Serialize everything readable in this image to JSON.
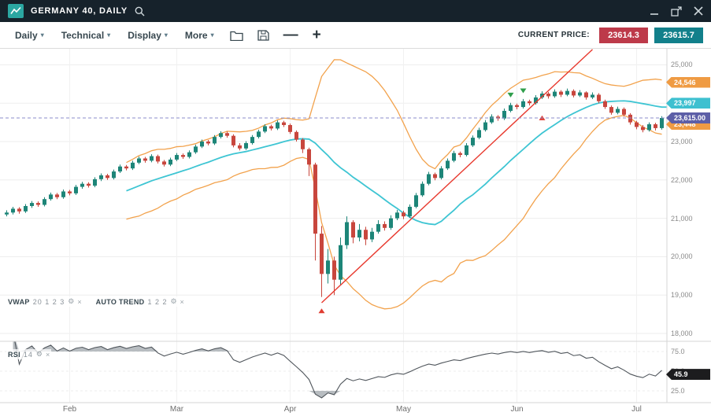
{
  "title_bar": {
    "title": "GERMANY 40, DAILY"
  },
  "toolbar": {
    "menus": [
      {
        "label": "Daily"
      },
      {
        "label": "Technical"
      },
      {
        "label": "Display"
      },
      {
        "label": "More"
      }
    ],
    "zoom_out": "—",
    "zoom_in": "+",
    "current_price_label": "CURRENT PRICE:",
    "sell_price": "23614.3",
    "buy_price": "23615.7"
  },
  "indicators": {
    "vwap_label": "VWAP",
    "vwap_params": "20 1 2 3",
    "autotrend_label": "AUTO TREND",
    "autotrend_params": "1 2 2",
    "rsi_label": "RSI",
    "rsi_params": "14"
  },
  "axes": {
    "price_ticks": [
      {
        "label": "25,000",
        "value": 25000
      },
      {
        "label": "24,000",
        "value": 24000
      },
      {
        "label": "23,000",
        "value": 23000
      },
      {
        "label": "22,000",
        "value": 22000
      },
      {
        "label": "21,000",
        "value": 21000
      },
      {
        "label": "20,000",
        "value": 20000
      },
      {
        "label": "19,000",
        "value": 19000
      },
      {
        "label": "18,000",
        "value": 18000
      }
    ],
    "rsi_ticks": [
      {
        "label": "75.0",
        "value": 75
      },
      {
        "label": "50.0",
        "value": 50
      },
      {
        "label": "25.0",
        "value": 25
      }
    ]
  },
  "price_badges": [
    {
      "text": "24,546",
      "value": 24546,
      "color": "#ef9b43"
    },
    {
      "text": "23,997",
      "value": 23997,
      "color": "#3ec0d0"
    },
    {
      "text": "23,448",
      "value": 23448,
      "color": "#ef9b43"
    },
    {
      "text": "23,615.00",
      "value": 23615,
      "color": "#5d5fa7"
    }
  ],
  "rsi_badge": {
    "text": "45.9",
    "value": 45.9,
    "color": "#1c1c1e"
  },
  "chart_data": {
    "type": "candlestick",
    "symbol": "GERMANY 40",
    "timeframe": "DAILY",
    "current_price": 23615,
    "ylim": [
      17800,
      25500
    ],
    "colors": {
      "up": "#1d8578",
      "down": "#c8463d"
    },
    "months": [
      {
        "label": "Feb",
        "index": 10
      },
      {
        "label": "Mar",
        "index": 27
      },
      {
        "label": "Apr",
        "index": 45
      },
      {
        "label": "May",
        "index": 63
      },
      {
        "label": "Jun",
        "index": 81
      },
      {
        "label": "Jul",
        "index": 100
      }
    ],
    "overlays": {
      "vwap": {
        "period": 20,
        "color": "#3ec5d3"
      },
      "bands": {
        "multiplier": 2,
        "color": "#f2a24c"
      }
    },
    "trend_line": {
      "from": {
        "index": 50,
        "price": 18800
      },
      "to": {
        "index": 93,
        "price": 25400
      },
      "color": "#e8392e"
    },
    "markers": [
      {
        "shape": "triangle-up",
        "color": "#e03c31",
        "index": 50,
        "price": 18650
      },
      {
        "shape": "triangle-down",
        "color": "#2f9e4b",
        "index": 80,
        "price": 24150
      },
      {
        "shape": "triangle-down",
        "color": "#2f9e4b",
        "index": 82,
        "price": 24260
      },
      {
        "shape": "triangle-up",
        "color": "#e03c31",
        "index": 85,
        "price": 23680
      }
    ],
    "rsi": {
      "period": 14,
      "upper": 75,
      "lower": 25,
      "current": 45.9,
      "color": "#50565c"
    },
    "candles": [
      [
        21100,
        21210,
        21050,
        21150
      ],
      [
        21150,
        21300,
        21100,
        21250
      ],
      [
        21250,
        21290,
        21120,
        21180
      ],
      [
        21180,
        21370,
        21140,
        21320
      ],
      [
        21320,
        21450,
        21270,
        21400
      ],
      [
        21400,
        21440,
        21300,
        21350
      ],
      [
        21350,
        21550,
        21310,
        21500
      ],
      [
        21500,
        21670,
        21460,
        21620
      ],
      [
        21620,
        21660,
        21500,
        21550
      ],
      [
        21550,
        21750,
        21510,
        21700
      ],
      [
        21700,
        21740,
        21600,
        21650
      ],
      [
        21650,
        21870,
        21610,
        21820
      ],
      [
        21820,
        21950,
        21770,
        21900
      ],
      [
        21900,
        21940,
        21800,
        21850
      ],
      [
        21850,
        22070,
        21810,
        22020
      ],
      [
        22020,
        22170,
        21970,
        22120
      ],
      [
        22120,
        22160,
        22000,
        22050
      ],
      [
        22050,
        22270,
        22010,
        22220
      ],
      [
        22220,
        22400,
        22180,
        22350
      ],
      [
        22350,
        22390,
        22250,
        22300
      ],
      [
        22300,
        22500,
        22260,
        22450
      ],
      [
        22450,
        22610,
        22410,
        22560
      ],
      [
        22560,
        22600,
        22450,
        22500
      ],
      [
        22500,
        22670,
        22460,
        22620
      ],
      [
        22620,
        22660,
        22430,
        22480
      ],
      [
        22480,
        22520,
        22350,
        22400
      ],
      [
        22400,
        22580,
        22360,
        22530
      ],
      [
        22530,
        22700,
        22490,
        22650
      ],
      [
        22650,
        22690,
        22550,
        22600
      ],
      [
        22600,
        22770,
        22560,
        22720
      ],
      [
        22720,
        22920,
        22680,
        22870
      ],
      [
        22870,
        23050,
        22830,
        23000
      ],
      [
        23000,
        23040,
        22900,
        22950
      ],
      [
        22950,
        23170,
        22910,
        23120
      ],
      [
        23120,
        23270,
        23080,
        23220
      ],
      [
        23220,
        23260,
        23100,
        23150
      ],
      [
        23150,
        23190,
        22850,
        22900
      ],
      [
        22900,
        22960,
        22770,
        22820
      ],
      [
        22820,
        23010,
        22780,
        22960
      ],
      [
        22960,
        23170,
        22920,
        23120
      ],
      [
        23120,
        23310,
        23080,
        23260
      ],
      [
        23260,
        23450,
        23220,
        23400
      ],
      [
        23400,
        23440,
        23290,
        23340
      ],
      [
        23340,
        23550,
        23300,
        23500
      ],
      [
        23500,
        23540,
        23380,
        23430
      ],
      [
        23430,
        23470,
        23200,
        23250
      ],
      [
        23250,
        23290,
        23000,
        23050
      ],
      [
        23050,
        23090,
        22700,
        22800
      ],
      [
        22800,
        22840,
        22100,
        22400
      ],
      [
        22400,
        22450,
        19900,
        20600
      ],
      [
        20600,
        20800,
        18950,
        19550
      ],
      [
        19550,
        20200,
        19300,
        19900
      ],
      [
        19900,
        20000,
        19000,
        19400
      ],
      [
        19400,
        20500,
        19250,
        20300
      ],
      [
        20300,
        21050,
        20200,
        20900
      ],
      [
        20900,
        20950,
        20350,
        20500
      ],
      [
        20500,
        20850,
        20400,
        20700
      ],
      [
        20700,
        20780,
        20300,
        20450
      ],
      [
        20450,
        20750,
        20380,
        20650
      ],
      [
        20650,
        20950,
        20600,
        20850
      ],
      [
        20850,
        20920,
        20680,
        20750
      ],
      [
        20750,
        21080,
        20700,
        21000
      ],
      [
        21000,
        21220,
        20950,
        21150
      ],
      [
        21150,
        21200,
        20980,
        21050
      ],
      [
        21050,
        21360,
        21010,
        21300
      ],
      [
        21300,
        21660,
        21260,
        21600
      ],
      [
        21600,
        21960,
        21560,
        21900
      ],
      [
        21900,
        22210,
        21860,
        22150
      ],
      [
        22150,
        22190,
        21990,
        22050
      ],
      [
        22050,
        22360,
        22010,
        22300
      ],
      [
        22300,
        22560,
        22260,
        22500
      ],
      [
        22500,
        22760,
        22460,
        22700
      ],
      [
        22700,
        22740,
        22590,
        22650
      ],
      [
        22650,
        22960,
        22610,
        22900
      ],
      [
        22900,
        23160,
        22860,
        23100
      ],
      [
        23100,
        23360,
        23060,
        23300
      ],
      [
        23300,
        23560,
        23260,
        23500
      ],
      [
        23500,
        23710,
        23460,
        23650
      ],
      [
        23650,
        23690,
        23540,
        23600
      ],
      [
        23600,
        23860,
        23560,
        23800
      ],
      [
        23800,
        24010,
        23760,
        23950
      ],
      [
        23950,
        23990,
        23840,
        23900
      ],
      [
        23900,
        24110,
        23860,
        24050
      ],
      [
        24050,
        24090,
        23940,
        24000
      ],
      [
        24000,
        24210,
        23960,
        24150
      ],
      [
        24150,
        24310,
        24110,
        24250
      ],
      [
        24250,
        24290,
        24120,
        24180
      ],
      [
        24180,
        24360,
        24140,
        24300
      ],
      [
        24300,
        24340,
        24160,
        24220
      ],
      [
        24220,
        24380,
        24180,
        24320
      ],
      [
        24320,
        24360,
        24150,
        24200
      ],
      [
        24200,
        24340,
        24160,
        24280
      ],
      [
        24280,
        24310,
        24090,
        24150
      ],
      [
        24150,
        24280,
        24110,
        24220
      ],
      [
        24220,
        24260,
        24000,
        24050
      ],
      [
        24050,
        24090,
        23850,
        23900
      ],
      [
        23900,
        23940,
        23700,
        23750
      ],
      [
        23750,
        23910,
        23710,
        23850
      ],
      [
        23850,
        23890,
        23650,
        23700
      ],
      [
        23700,
        23740,
        23440,
        23500
      ],
      [
        23500,
        23540,
        23320,
        23380
      ],
      [
        23380,
        23430,
        23240,
        23300
      ],
      [
        23300,
        23500,
        23260,
        23450
      ],
      [
        23450,
        23490,
        23290,
        23350
      ],
      [
        23350,
        23660,
        23310,
        23615
      ]
    ]
  }
}
